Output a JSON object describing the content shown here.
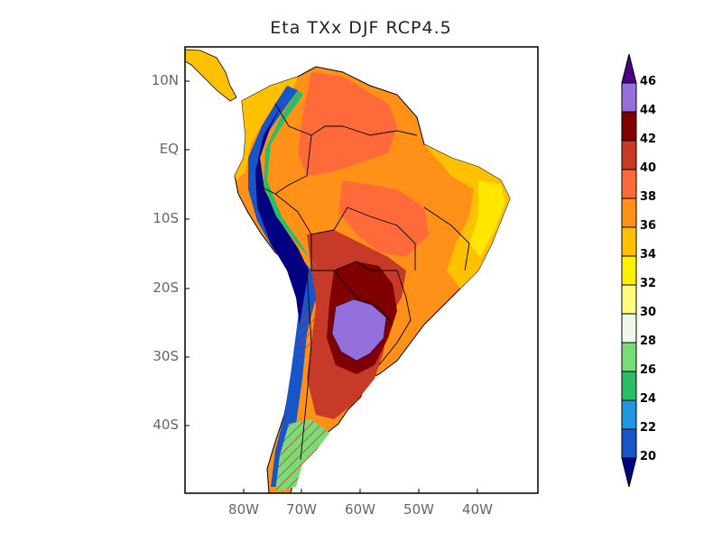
{
  "title": "Eta TXx DJF RCP4.5",
  "chart_data": {
    "type": "heatmap",
    "title": "Eta TXx DJF RCP4.5",
    "lat_ticks": [
      "10N",
      "EQ",
      "10S",
      "20S",
      "30S",
      "40S"
    ],
    "lon_ticks": [
      "80W",
      "70W",
      "60W",
      "50W",
      "40W"
    ],
    "colorbar": {
      "levels": [
        20,
        22,
        24,
        26,
        28,
        30,
        32,
        34,
        36,
        38,
        40,
        42,
        44,
        46
      ],
      "colors": [
        "#000080",
        "#1855c8",
        "#1e96e0",
        "#2bbd66",
        "#78dc78",
        "#eef8ea",
        "#fffc80",
        "#fff000",
        "#ffc000",
        "#ff9018",
        "#ff6a3a",
        "#c83a28",
        "#800000",
        "#9370db",
        "#4b0082"
      ],
      "extend": "both",
      "orientation": "vertical",
      "placement": "right"
    }
  }
}
